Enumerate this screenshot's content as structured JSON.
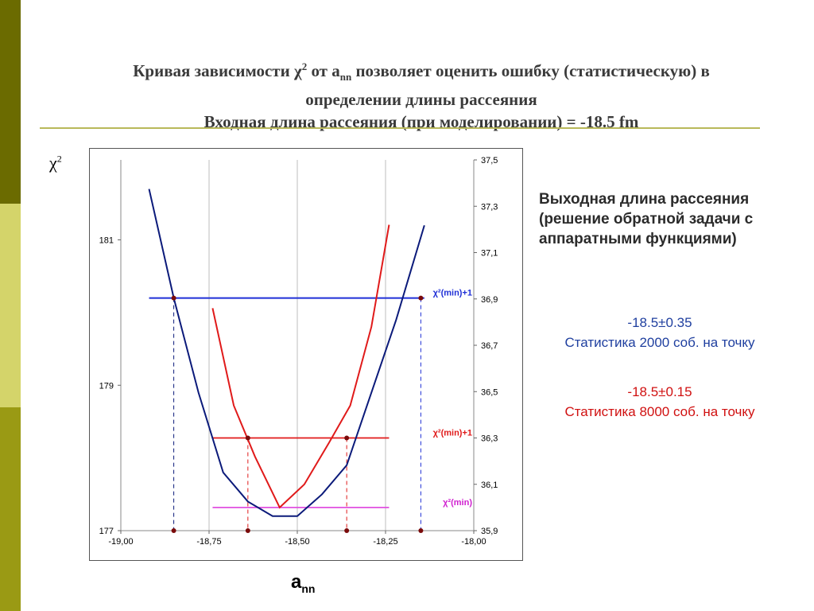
{
  "slide": {
    "title_line1_pre": "Кривая зависимости χ",
    "title_sup": "2",
    "title_line1_mid": " от a",
    "title_sub": "nn",
    "title_line1_post": " позволяет оценить ошибку (статистическую) в",
    "title_line2": "определении длины рассеяния",
    "title_line3": "Входная длина рассеяния (при моделировании) = -18.5 fm",
    "y_axis_symbol": "χ",
    "y_axis_sup": "2",
    "x_axis_label": "a",
    "x_axis_sub": "nn",
    "right_heading": [
      "Выходная длина рассеяния",
      "(решение обратной задачи с",
      "аппаратными функциями)"
    ],
    "result_blue_value": "-18.5±0.35",
    "result_blue_note": "Статистика 2000 соб. на точку",
    "result_red_value": "-18.5±0.15",
    "result_red_note": "Статистика 8000 соб. на точку"
  },
  "colors": {
    "blue_curve": "#0b1a7a",
    "blue_hline": "#1f2fd6",
    "red_curve": "#e01a1a",
    "magenta_line": "#e050e0",
    "marker": "#7a0a0a",
    "sidebar_dark": "#6b6b00",
    "sidebar_light": "#d4d46a",
    "sidebar_mid": "#9a9a14"
  },
  "chart_data": {
    "type": "line",
    "xlim": [
      -19.0,
      -18.0
    ],
    "x_ticks": [
      "-19,00",
      "-18,75",
      "-18,50",
      "-18,25",
      "-18,00"
    ],
    "x_tick_values": [
      -19.0,
      -18.75,
      -18.5,
      -18.25,
      -18.0
    ],
    "left_ylim": [
      177,
      182.1
    ],
    "left_y_ticks": [
      "177",
      "179",
      "181"
    ],
    "left_y_tick_values": [
      177,
      179,
      181
    ],
    "right_ylim": [
      35.9,
      37.5
    ],
    "right_y_ticks": [
      "35,9",
      "36,1",
      "36,3",
      "36,5",
      "36,7",
      "36,9",
      "37,1",
      "37,3",
      "37,5"
    ],
    "right_y_tick_values": [
      35.9,
      36.1,
      36.3,
      36.5,
      36.7,
      36.9,
      37.1,
      37.3,
      37.5
    ],
    "grid": "vertical",
    "series": [
      {
        "axis": "left",
        "color": "#0b1a7a",
        "x": [
          -18.92,
          -18.85,
          -18.78,
          -18.71,
          -18.64,
          -18.57,
          -18.5,
          -18.43,
          -18.36,
          -18.29,
          -18.22,
          -18.14
        ],
        "y": [
          181.7,
          180.2,
          178.9,
          177.8,
          177.4,
          177.2,
          177.2,
          177.5,
          177.9,
          178.9,
          179.9,
          181.2
        ]
      },
      {
        "axis": "right",
        "color": "#e01a1a",
        "x": [
          -18.74,
          -18.68,
          -18.62,
          -18.55,
          -18.48,
          -18.41,
          -18.35,
          -18.29,
          -18.24
        ],
        "y": [
          36.86,
          36.44,
          36.22,
          36.0,
          36.1,
          36.28,
          36.44,
          36.78,
          37.22
        ]
      }
    ],
    "hlines": [
      {
        "axis": "left",
        "y": 180.2,
        "x_from": -18.92,
        "x_to": -18.14,
        "color": "#1f2fd6",
        "label": "χ²(min)+1",
        "label_color": "#1f2fd6"
      },
      {
        "axis": "right",
        "y": 36.3,
        "x_from": -18.74,
        "x_to": -18.24,
        "color": "#e01a1a",
        "label": "χ²(min)+1",
        "label_color": "#e01a1a"
      },
      {
        "axis": "right",
        "y": 36.0,
        "x_from": -18.74,
        "x_to": -18.24,
        "color": "#e050e0",
        "label": "χ²(min)",
        "label_color": "#d020d0"
      }
    ],
    "vlines": [
      {
        "x": -18.85,
        "axis": "left",
        "y": 180.2,
        "color": "#0b1a7a"
      },
      {
        "x": -18.15,
        "axis": "left",
        "y": 180.2,
        "color": "#1f2fd6"
      },
      {
        "x": -18.64,
        "axis": "right",
        "y": 36.3,
        "color": "#e01a1a"
      },
      {
        "x": -18.36,
        "axis": "right",
        "y": 36.3,
        "color": "#e01a1a"
      }
    ],
    "markers_x": [
      -18.85,
      -18.64,
      -18.36,
      -18.15
    ]
  }
}
